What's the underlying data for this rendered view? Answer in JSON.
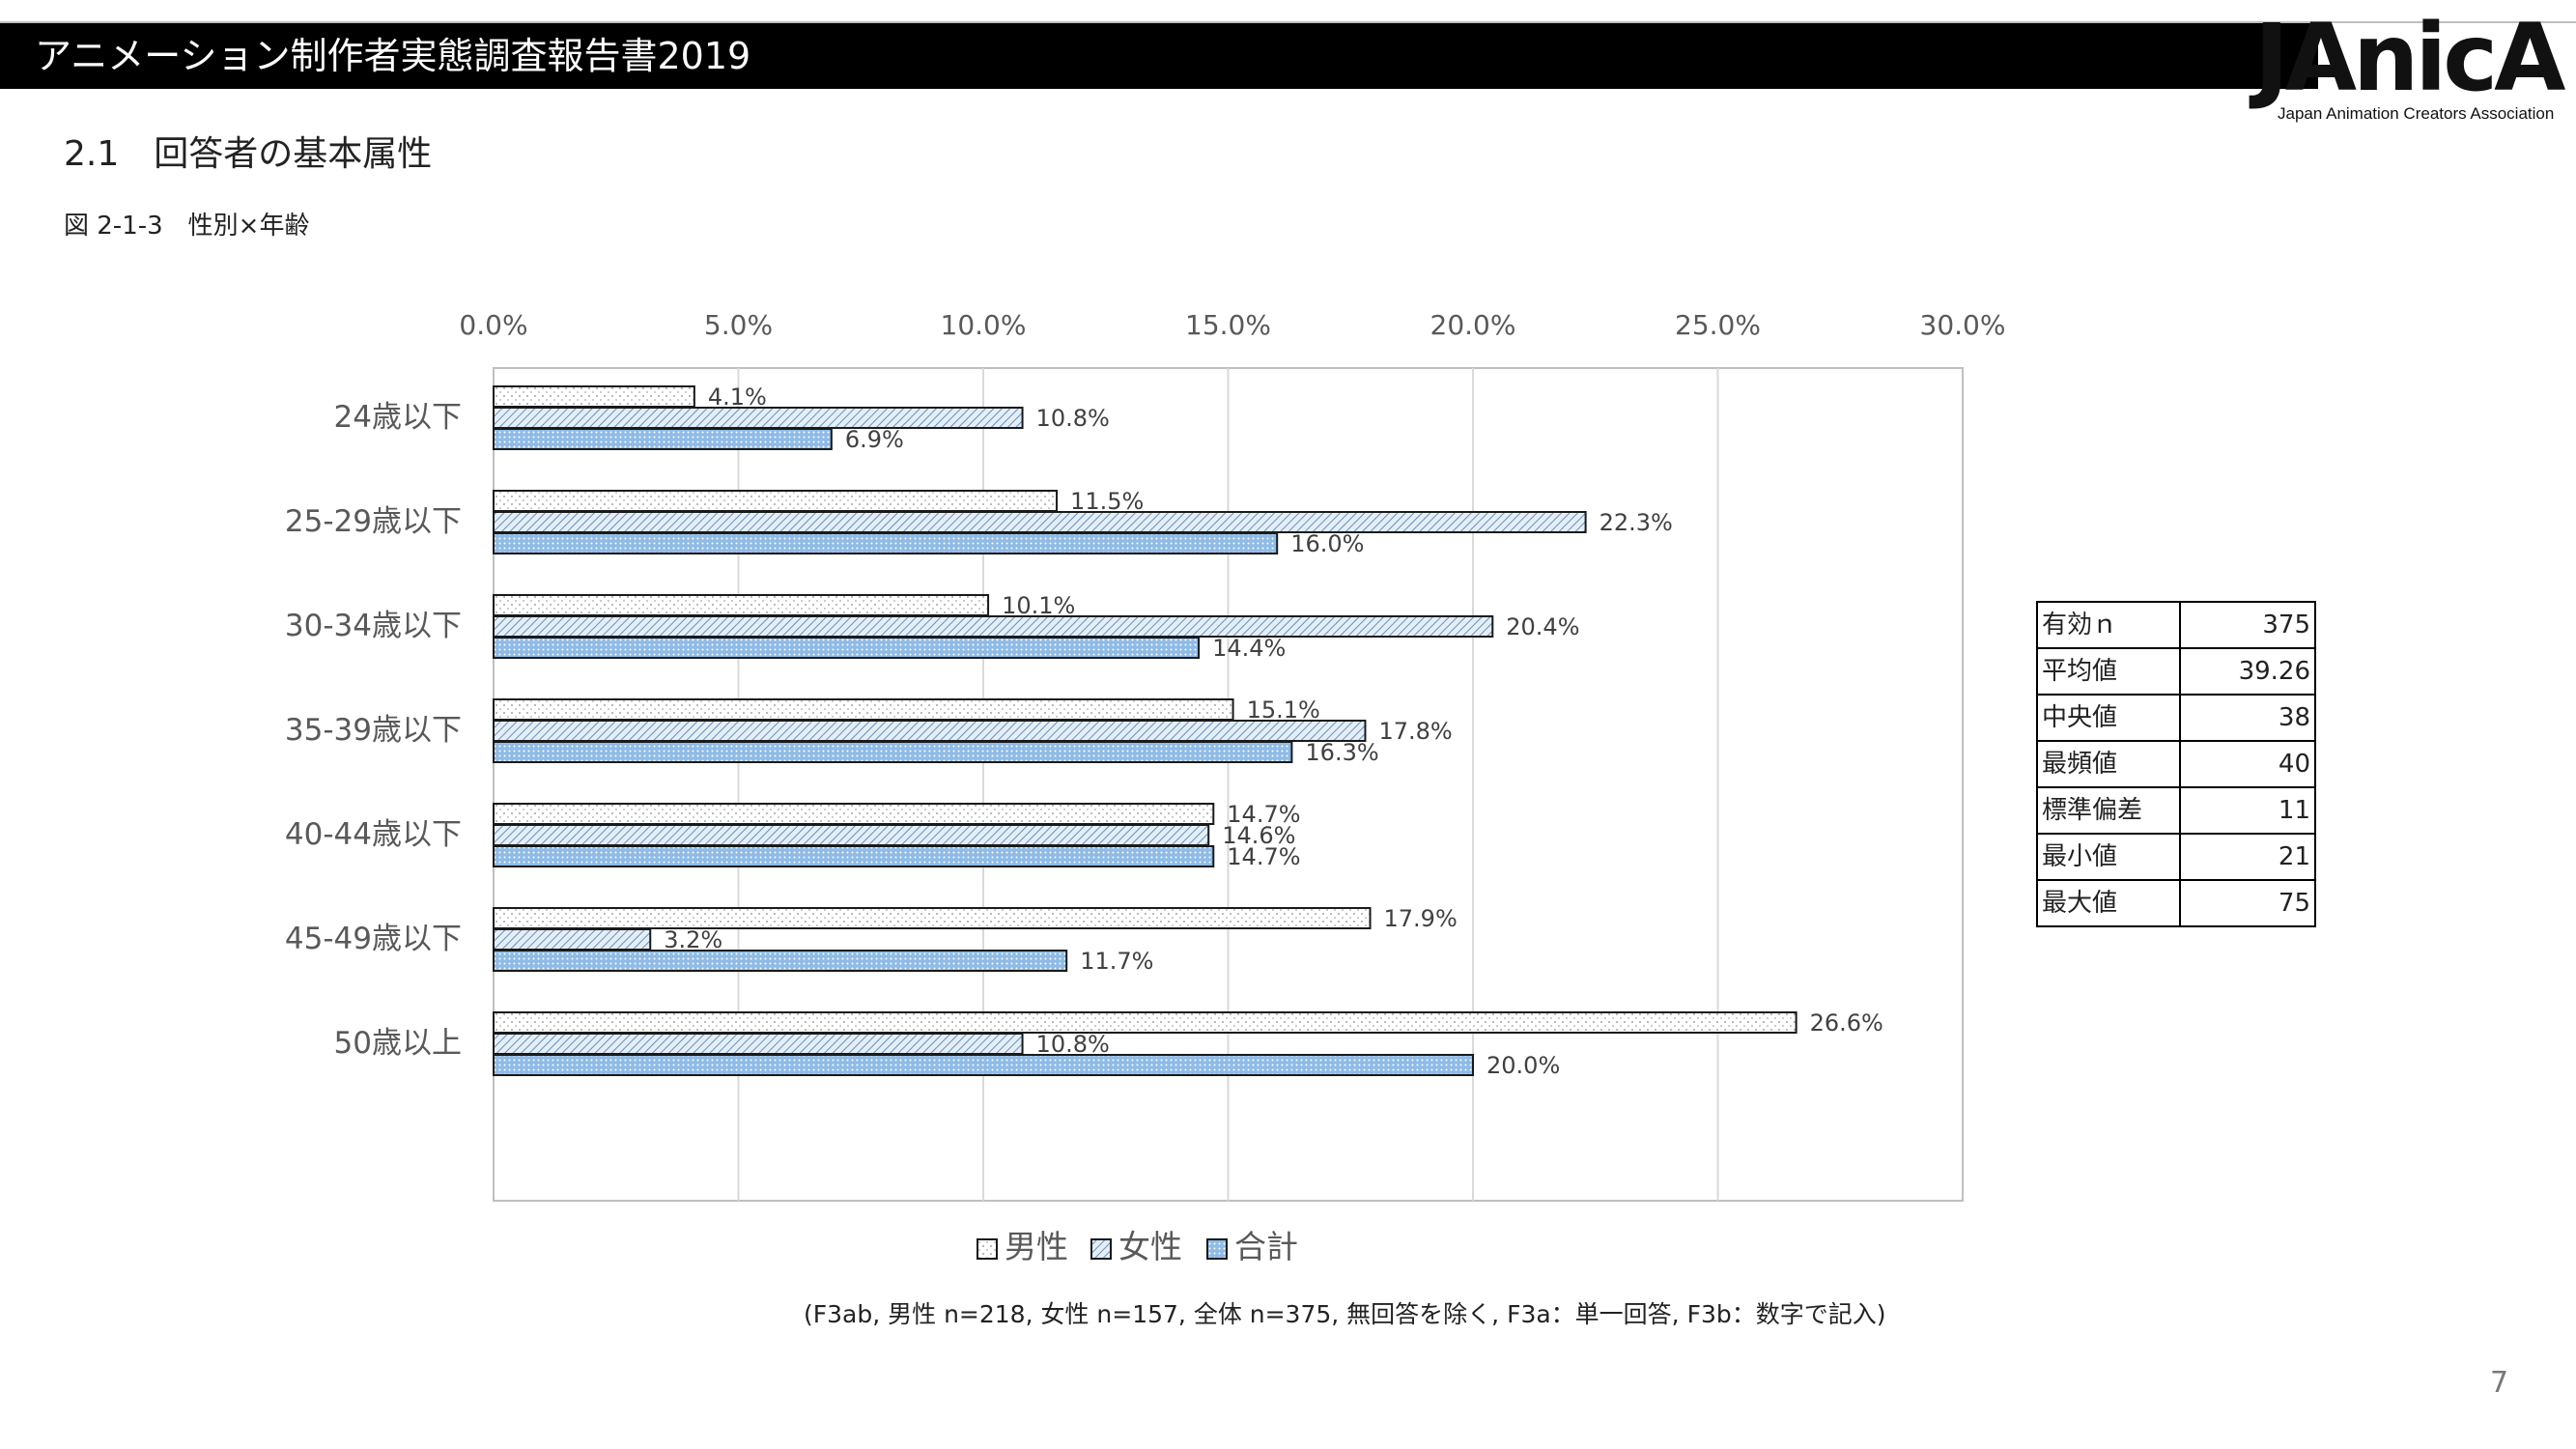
{
  "header": {
    "title": "アニメーション制作者実態調査報告書2019",
    "logo_text": "JAnicA",
    "logo_sub": "Japan Animation Creators Association"
  },
  "section_heading": "2.1　回答者の基本属性",
  "figure_caption": "図 2-1-3　性別×年齢",
  "chart_data": {
    "type": "bar",
    "orientation": "horizontal",
    "categories": [
      "24歳以下",
      "25-29歳以下",
      "30-34歳以下",
      "35-39歳以下",
      "40-44歳以下",
      "45-49歳以下",
      "50歳以上"
    ],
    "series": [
      {
        "name": "男性",
        "values": [
          4.1,
          11.5,
          10.1,
          15.1,
          14.7,
          17.9,
          26.6
        ],
        "pattern": "dots",
        "color": "#ffffff"
      },
      {
        "name": "女性",
        "values": [
          10.8,
          22.3,
          20.4,
          17.8,
          14.6,
          3.2,
          10.8
        ],
        "pattern": "diagonal",
        "color": "#d6e6f4"
      },
      {
        "name": "合計",
        "values": [
          6.9,
          16.0,
          14.4,
          16.3,
          14.7,
          11.7,
          20.0
        ],
        "pattern": "dense-dots",
        "color": "#7fb1e0"
      }
    ],
    "data_labels": [
      [
        "4.1%",
        "11.5%",
        "10.1%",
        "15.1%",
        "14.7%",
        "17.9%",
        "26.6%"
      ],
      [
        "10.8%",
        "22.3%",
        "20.4%",
        "17.8%",
        "14.6%",
        "3.2%",
        "10.8%"
      ],
      [
        "6.9%",
        "16.0%",
        "14.4%",
        "16.3%",
        "14.7%",
        "11.7%",
        "20.0%"
      ]
    ],
    "xlim": [
      0,
      30
    ],
    "xticks": [
      0,
      5,
      10,
      15,
      20,
      25,
      30
    ],
    "xtick_labels": [
      "0.0%",
      "5.0%",
      "10.0%",
      "15.0%",
      "20.0%",
      "25.0%",
      "30.0%"
    ],
    "x_axis_position": "top",
    "grid": true,
    "legend_position": "bottom"
  },
  "stats_table": [
    {
      "label": "有効ｎ",
      "value": "375"
    },
    {
      "label": "平均値",
      "value": "39.26"
    },
    {
      "label": "中央値",
      "value": "38"
    },
    {
      "label": "最頻値",
      "value": "40"
    },
    {
      "label": "標準偏差",
      "value": "11"
    },
    {
      "label": "最小値",
      "value": "21"
    },
    {
      "label": "最大値",
      "value": "75"
    }
  ],
  "footnote": "(F3ab, 男性 n=218, 女性 n=157, 全体 n=375, 無回答を除く, F3a：単一回答, F3b：数字で記入)",
  "page_number": "7"
}
